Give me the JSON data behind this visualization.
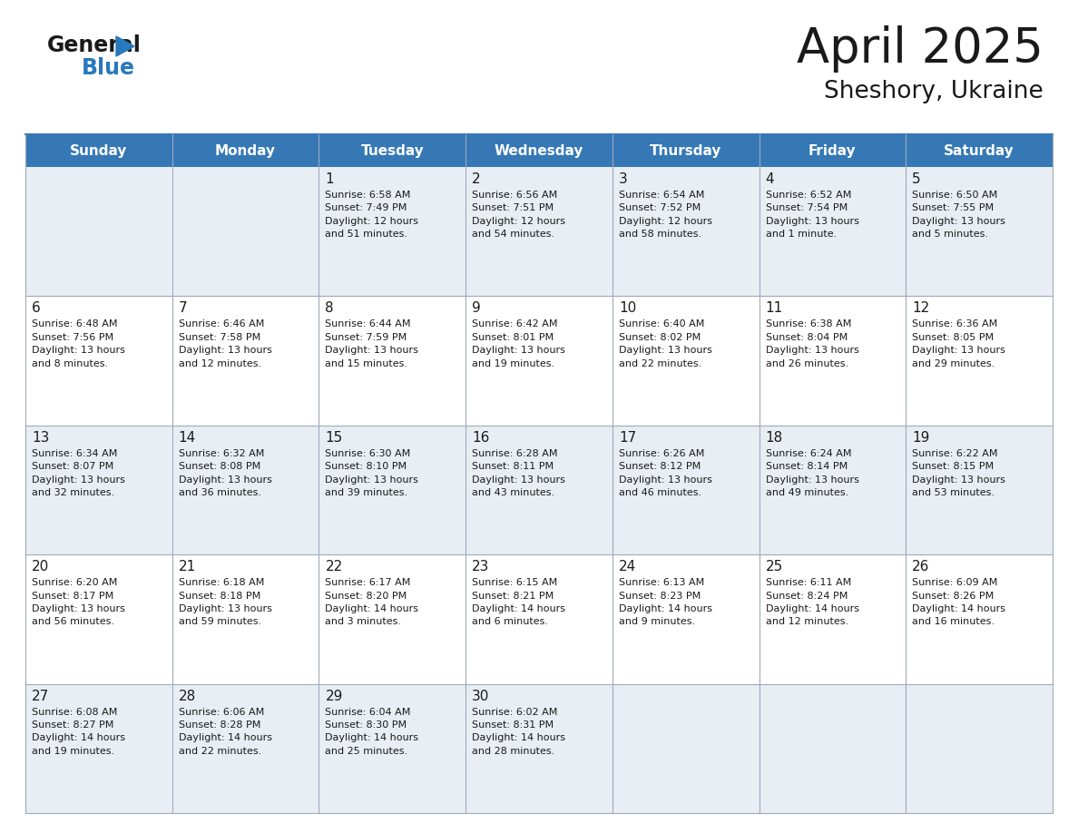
{
  "title": "April 2025",
  "subtitle": "Sheshory, Ukraine",
  "header_bg": "#3578b5",
  "header_text": "#ffffff",
  "row0_bg": "#e8eef4",
  "row1_bg": "#ffffff",
  "border_color": "#a0aabb",
  "days_of_week": [
    "Sunday",
    "Monday",
    "Tuesday",
    "Wednesday",
    "Thursday",
    "Friday",
    "Saturday"
  ],
  "weeks": [
    [
      {
        "day": "",
        "info": ""
      },
      {
        "day": "",
        "info": ""
      },
      {
        "day": "1",
        "info": "Sunrise: 6:58 AM\nSunset: 7:49 PM\nDaylight: 12 hours\nand 51 minutes."
      },
      {
        "day": "2",
        "info": "Sunrise: 6:56 AM\nSunset: 7:51 PM\nDaylight: 12 hours\nand 54 minutes."
      },
      {
        "day": "3",
        "info": "Sunrise: 6:54 AM\nSunset: 7:52 PM\nDaylight: 12 hours\nand 58 minutes."
      },
      {
        "day": "4",
        "info": "Sunrise: 6:52 AM\nSunset: 7:54 PM\nDaylight: 13 hours\nand 1 minute."
      },
      {
        "day": "5",
        "info": "Sunrise: 6:50 AM\nSunset: 7:55 PM\nDaylight: 13 hours\nand 5 minutes."
      }
    ],
    [
      {
        "day": "6",
        "info": "Sunrise: 6:48 AM\nSunset: 7:56 PM\nDaylight: 13 hours\nand 8 minutes."
      },
      {
        "day": "7",
        "info": "Sunrise: 6:46 AM\nSunset: 7:58 PM\nDaylight: 13 hours\nand 12 minutes."
      },
      {
        "day": "8",
        "info": "Sunrise: 6:44 AM\nSunset: 7:59 PM\nDaylight: 13 hours\nand 15 minutes."
      },
      {
        "day": "9",
        "info": "Sunrise: 6:42 AM\nSunset: 8:01 PM\nDaylight: 13 hours\nand 19 minutes."
      },
      {
        "day": "10",
        "info": "Sunrise: 6:40 AM\nSunset: 8:02 PM\nDaylight: 13 hours\nand 22 minutes."
      },
      {
        "day": "11",
        "info": "Sunrise: 6:38 AM\nSunset: 8:04 PM\nDaylight: 13 hours\nand 26 minutes."
      },
      {
        "day": "12",
        "info": "Sunrise: 6:36 AM\nSunset: 8:05 PM\nDaylight: 13 hours\nand 29 minutes."
      }
    ],
    [
      {
        "day": "13",
        "info": "Sunrise: 6:34 AM\nSunset: 8:07 PM\nDaylight: 13 hours\nand 32 minutes."
      },
      {
        "day": "14",
        "info": "Sunrise: 6:32 AM\nSunset: 8:08 PM\nDaylight: 13 hours\nand 36 minutes."
      },
      {
        "day": "15",
        "info": "Sunrise: 6:30 AM\nSunset: 8:10 PM\nDaylight: 13 hours\nand 39 minutes."
      },
      {
        "day": "16",
        "info": "Sunrise: 6:28 AM\nSunset: 8:11 PM\nDaylight: 13 hours\nand 43 minutes."
      },
      {
        "day": "17",
        "info": "Sunrise: 6:26 AM\nSunset: 8:12 PM\nDaylight: 13 hours\nand 46 minutes."
      },
      {
        "day": "18",
        "info": "Sunrise: 6:24 AM\nSunset: 8:14 PM\nDaylight: 13 hours\nand 49 minutes."
      },
      {
        "day": "19",
        "info": "Sunrise: 6:22 AM\nSunset: 8:15 PM\nDaylight: 13 hours\nand 53 minutes."
      }
    ],
    [
      {
        "day": "20",
        "info": "Sunrise: 6:20 AM\nSunset: 8:17 PM\nDaylight: 13 hours\nand 56 minutes."
      },
      {
        "day": "21",
        "info": "Sunrise: 6:18 AM\nSunset: 8:18 PM\nDaylight: 13 hours\nand 59 minutes."
      },
      {
        "day": "22",
        "info": "Sunrise: 6:17 AM\nSunset: 8:20 PM\nDaylight: 14 hours\nand 3 minutes."
      },
      {
        "day": "23",
        "info": "Sunrise: 6:15 AM\nSunset: 8:21 PM\nDaylight: 14 hours\nand 6 minutes."
      },
      {
        "day": "24",
        "info": "Sunrise: 6:13 AM\nSunset: 8:23 PM\nDaylight: 14 hours\nand 9 minutes."
      },
      {
        "day": "25",
        "info": "Sunrise: 6:11 AM\nSunset: 8:24 PM\nDaylight: 14 hours\nand 12 minutes."
      },
      {
        "day": "26",
        "info": "Sunrise: 6:09 AM\nSunset: 8:26 PM\nDaylight: 14 hours\nand 16 minutes."
      }
    ],
    [
      {
        "day": "27",
        "info": "Sunrise: 6:08 AM\nSunset: 8:27 PM\nDaylight: 14 hours\nand 19 minutes."
      },
      {
        "day": "28",
        "info": "Sunrise: 6:06 AM\nSunset: 8:28 PM\nDaylight: 14 hours\nand 22 minutes."
      },
      {
        "day": "29",
        "info": "Sunrise: 6:04 AM\nSunset: 8:30 PM\nDaylight: 14 hours\nand 25 minutes."
      },
      {
        "day": "30",
        "info": "Sunrise: 6:02 AM\nSunset: 8:31 PM\nDaylight: 14 hours\nand 28 minutes."
      },
      {
        "day": "",
        "info": ""
      },
      {
        "day": "",
        "info": ""
      },
      {
        "day": "",
        "info": ""
      }
    ]
  ],
  "fig_width": 11.88,
  "fig_height": 9.18,
  "dpi": 100
}
